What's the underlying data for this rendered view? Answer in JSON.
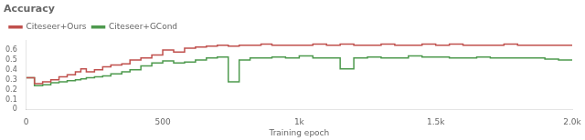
{
  "chart_data": {
    "type": "step",
    "title": "Accuracy",
    "x_label": "Training epoch",
    "xlim": [
      0,
      2000
    ],
    "ylim": [
      0,
      0.7
    ],
    "xticks": [
      0,
      500,
      {
        "value": 1000,
        "label": "1k"
      },
      {
        "value": 1500,
        "label": "1.5k"
      },
      {
        "value": 2000,
        "label": "2.0k"
      }
    ],
    "yticks": [
      0,
      0.1,
      0.2,
      0.3,
      0.4,
      0.5,
      0.6
    ],
    "grid": false,
    "legend": "upper left",
    "series": [
      {
        "name": "Citeseer+Ours",
        "color": "#c0504d",
        "x": [
          0,
          30,
          60,
          90,
          120,
          150,
          180,
          200,
          220,
          250,
          280,
          310,
          350,
          380,
          420,
          460,
          500,
          540,
          580,
          620,
          660,
          700,
          740,
          780,
          820,
          860,
          900,
          950,
          1000,
          1050,
          1100,
          1150,
          1200,
          1250,
          1300,
          1350,
          1400,
          1450,
          1500,
          1550,
          1600,
          1650,
          1700,
          1750,
          1800,
          1850,
          1900,
          1950,
          2000
        ],
        "values": [
          0.32,
          0.26,
          0.28,
          0.3,
          0.33,
          0.35,
          0.38,
          0.41,
          0.38,
          0.4,
          0.43,
          0.45,
          0.46,
          0.5,
          0.52,
          0.55,
          0.6,
          0.58,
          0.62,
          0.63,
          0.64,
          0.65,
          0.64,
          0.65,
          0.65,
          0.66,
          0.65,
          0.65,
          0.65,
          0.66,
          0.65,
          0.66,
          0.65,
          0.65,
          0.66,
          0.65,
          0.65,
          0.66,
          0.65,
          0.66,
          0.65,
          0.65,
          0.65,
          0.66,
          0.65,
          0.65,
          0.65,
          0.65,
          0.65
        ]
      },
      {
        "name": "Citeseer+GCond",
        "color": "#4e9a4e",
        "x": [
          0,
          30,
          60,
          90,
          120,
          150,
          180,
          200,
          220,
          250,
          280,
          310,
          350,
          380,
          420,
          460,
          500,
          540,
          580,
          620,
          660,
          700,
          740,
          780,
          820,
          860,
          900,
          950,
          1000,
          1050,
          1100,
          1150,
          1200,
          1250,
          1300,
          1350,
          1400,
          1450,
          1500,
          1550,
          1600,
          1650,
          1700,
          1750,
          1800,
          1850,
          1900,
          1950,
          2000
        ],
        "values": [
          0.32,
          0.24,
          0.25,
          0.27,
          0.28,
          0.29,
          0.3,
          0.31,
          0.32,
          0.33,
          0.34,
          0.36,
          0.38,
          0.4,
          0.44,
          0.47,
          0.49,
          0.47,
          0.48,
          0.5,
          0.52,
          0.53,
          0.28,
          0.5,
          0.52,
          0.52,
          0.53,
          0.52,
          0.54,
          0.52,
          0.52,
          0.41,
          0.52,
          0.53,
          0.52,
          0.52,
          0.54,
          0.53,
          0.53,
          0.52,
          0.52,
          0.53,
          0.52,
          0.52,
          0.52,
          0.52,
          0.51,
          0.5,
          0.5
        ]
      }
    ]
  }
}
